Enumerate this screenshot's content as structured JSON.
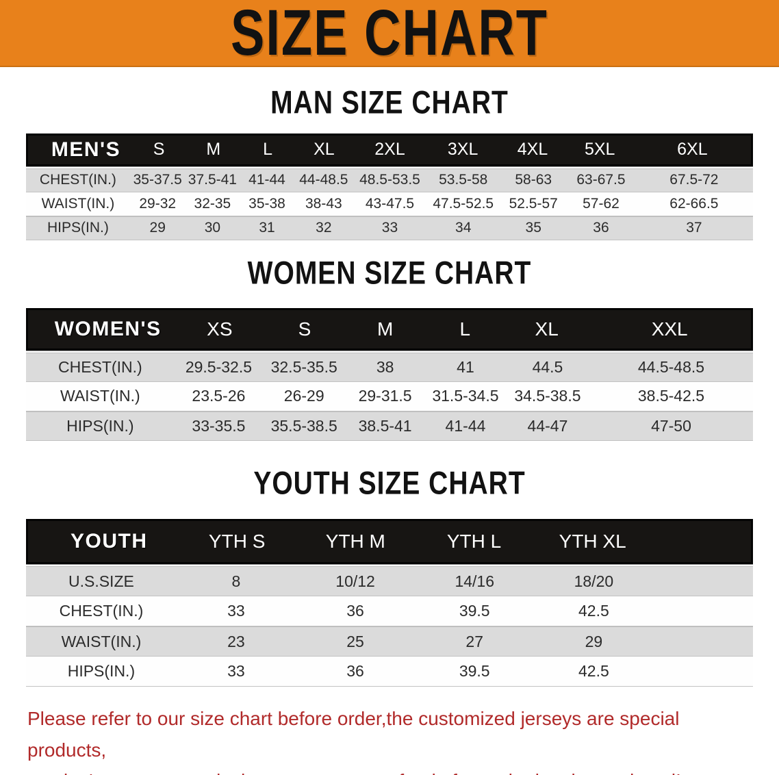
{
  "banner": {
    "title": "SIZE CHART"
  },
  "colors": {
    "banner_orange": "#E8811B",
    "header_band_black": "#171513",
    "row_gray": "#DBDBDB",
    "note_red": "#B12A2A"
  },
  "sections": [
    {
      "heading": "MAN SIZE CHART",
      "header_label": "MEN'S",
      "columns": [
        "S",
        "M",
        "L",
        "XL",
        "2XL",
        "3XL",
        "4XL",
        "5XL",
        "6XL"
      ],
      "rows": [
        {
          "label": "CHEST(IN.)",
          "values": [
            "35-37.5",
            "37.5-41",
            "41-44",
            "44-48.5",
            "48.5-53.5",
            "53.5-58",
            "58-63",
            "63-67.5",
            "67.5-72"
          ]
        },
        {
          "label": "WAIST(IN.)",
          "values": [
            "29-32",
            "32-35",
            "35-38",
            "38-43",
            "43-47.5",
            "47.5-52.5",
            "52.5-57",
            "57-62",
            "62-66.5"
          ]
        },
        {
          "label": "HIPS(IN.)",
          "values": [
            "29",
            "30",
            "31",
            "32",
            "33",
            "34",
            "35",
            "36",
            "37"
          ]
        }
      ]
    },
    {
      "heading": "WOMEN SIZE CHART",
      "header_label": "WOMEN'S",
      "columns": [
        "XS",
        "S",
        "M",
        "L",
        "XL",
        "XXL"
      ],
      "rows": [
        {
          "label": "CHEST(IN.)",
          "values": [
            "29.5-32.5",
            "32.5-35.5",
            "38",
            "41",
            "44.5",
            "44.5-48.5"
          ]
        },
        {
          "label": "WAIST(IN.)",
          "values": [
            "23.5-26",
            "26-29",
            "29-31.5",
            "31.5-34.5",
            "34.5-38.5",
            "38.5-42.5"
          ]
        },
        {
          "label": "HIPS(IN.)",
          "values": [
            "33-35.5",
            "35.5-38.5",
            "38.5-41",
            "41-44",
            "44-47",
            "47-50"
          ]
        }
      ]
    },
    {
      "heading": "YOUTH SIZE CHART",
      "header_label": "YOUTH",
      "columns": [
        "YTH S",
        "YTH M",
        "YTH L",
        "YTH XL"
      ],
      "rows": [
        {
          "label": "U.S.SIZE",
          "values": [
            "8",
            "10/12",
            "14/16",
            "18/20"
          ]
        },
        {
          "label": "CHEST(IN.)",
          "values": [
            "33",
            "36",
            "39.5",
            "42.5"
          ]
        },
        {
          "label": "WAIST(IN.)",
          "values": [
            "23",
            "25",
            "27",
            "29"
          ]
        },
        {
          "label": "HIPS(IN.)",
          "values": [
            "33",
            "36",
            "39.5",
            "42.5"
          ]
        }
      ]
    }
  ],
  "note": {
    "line1": "Please refer to our size chart before order,the customized jerseys are special products,",
    "line2": "we don't accept cancel, change, teturn or refund after order has been placed!"
  }
}
